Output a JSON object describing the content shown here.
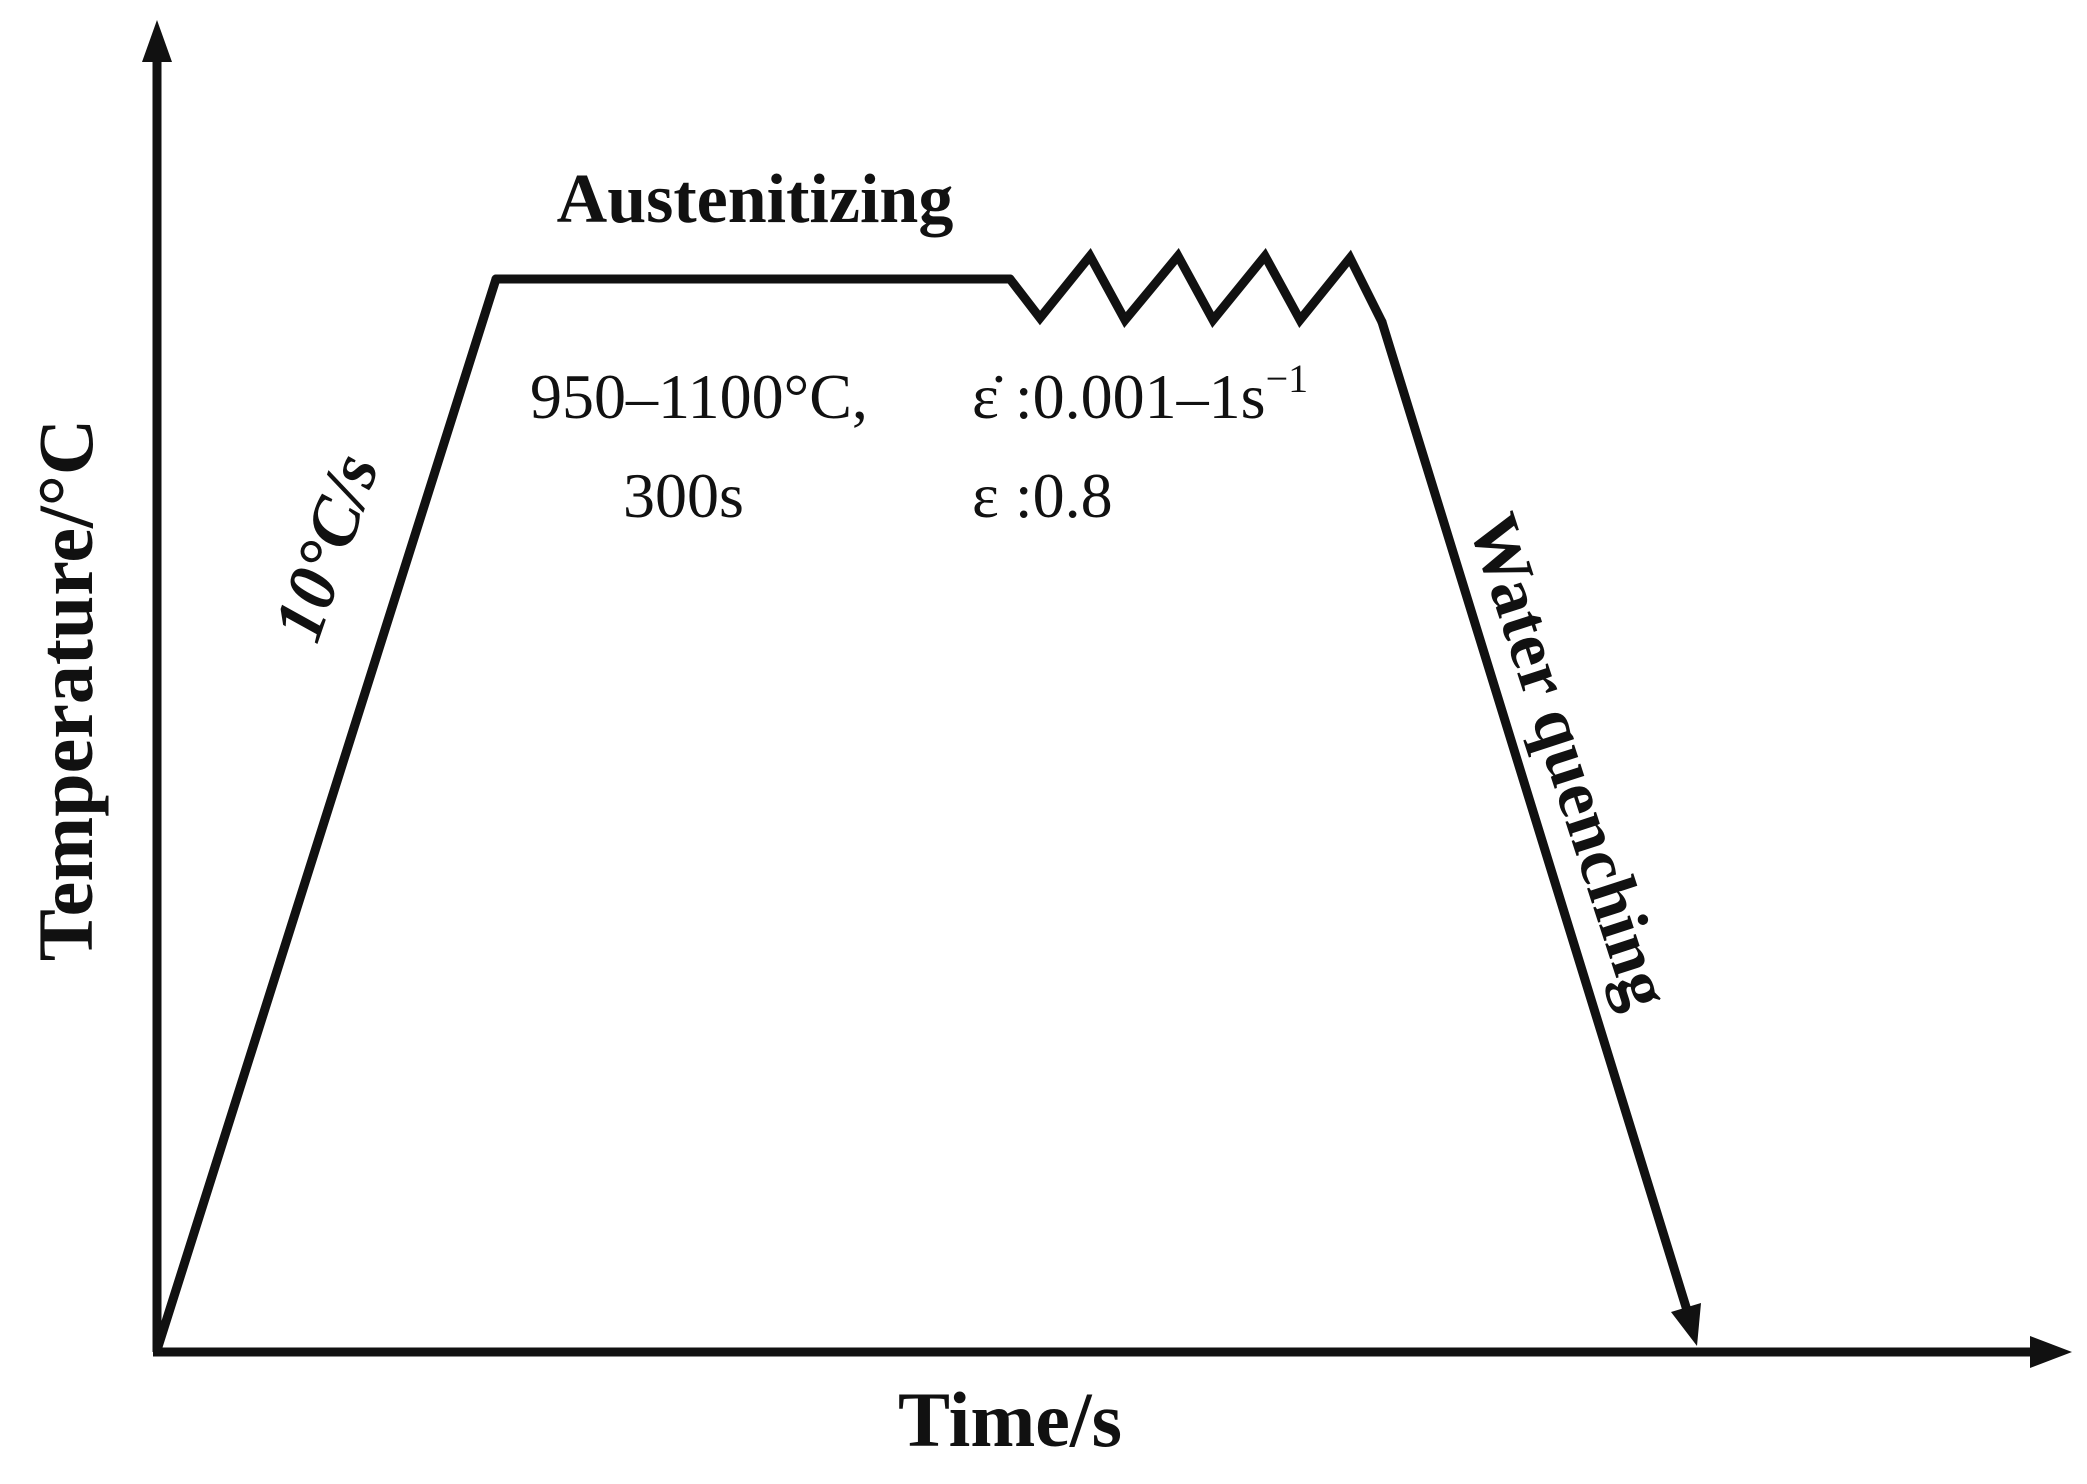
{
  "axes": {
    "y_label": "Temperature/°C",
    "x_label": "Time/s"
  },
  "stages": {
    "heating_rate": "10°C/s",
    "hold_label": "Austenitizing",
    "hold_temperature": "950–1100°C,",
    "hold_time": "300s",
    "strain_rate_symbol": "ε̇",
    "strain_rate_value": " :0.001–1s",
    "strain_rate_exponent": "−1",
    "strain_symbol": "ε",
    "strain_value": " :0.8",
    "cooling_label": "Water quenching"
  },
  "colors": {
    "line": "#111111",
    "text": "#111111",
    "background": "#ffffff"
  }
}
